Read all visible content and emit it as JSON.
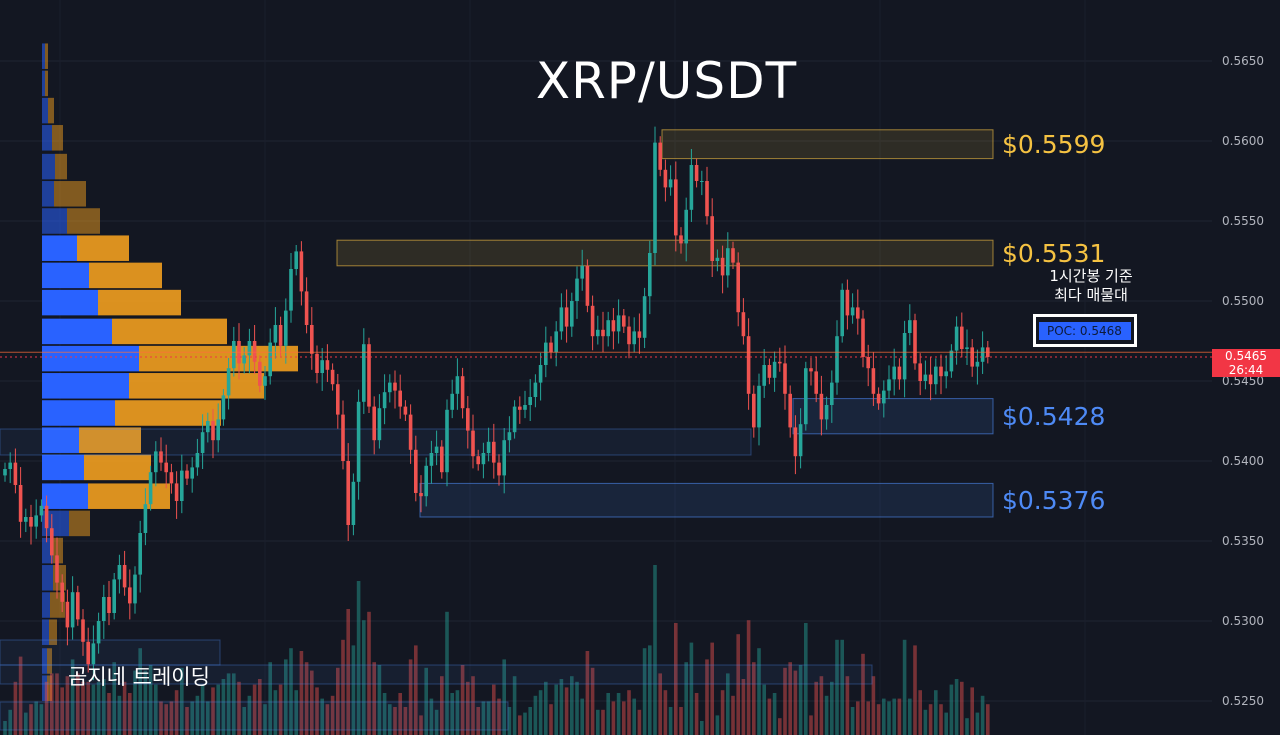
{
  "title": "XRP/USDT",
  "annotation": {
    "line1": "1시간봉 기준",
    "line2": "최다 매물대",
    "poc_label": "POC: 0.5468"
  },
  "brand": "곰지네 트레이딩",
  "current_price": {
    "value": "0.5465",
    "countdown": "26:44"
  },
  "colors": {
    "background": "#131722",
    "up": "#26a69a",
    "down": "#ef5350",
    "resistance": "#f5c242",
    "support": "#4e8af5",
    "poc": "#2962ff",
    "price_line": "#f23645"
  },
  "chart_data": {
    "type": "candlestick",
    "title": "XRP/USDT",
    "interval": "1시간봉",
    "ylim": [
      0.523,
      0.5665
    ],
    "y_ticks": [
      "0.5650",
      "0.5600",
      "0.5550",
      "0.5500",
      "0.5450",
      "0.5400",
      "0.5350",
      "0.5300",
      "0.5250"
    ],
    "levels": [
      {
        "label": "$0.5599",
        "price": 0.5599,
        "kind": "resistance",
        "low": 0.5589,
        "high": 0.5607
      },
      {
        "label": "$0.5531",
        "price": 0.5531,
        "kind": "resistance",
        "low": 0.5522,
        "high": 0.5538
      },
      {
        "label": "$0.5428",
        "price": 0.5428,
        "kind": "support",
        "low": 0.5417,
        "high": 0.5439
      },
      {
        "label": "$0.5376",
        "price": 0.5376,
        "kind": "support",
        "low": 0.5365,
        "high": 0.5386
      }
    ],
    "poc": 0.5468,
    "last_price": 0.5465,
    "volume_profile": {
      "bin_size": 0.00172,
      "bins": [
        {
          "price": 0.5653,
          "up": 3,
          "down": 3
        },
        {
          "price": 0.5636,
          "up": 3,
          "down": 3
        },
        {
          "price": 0.5619,
          "up": 6,
          "down": 6
        },
        {
          "price": 0.5602,
          "up": 10,
          "down": 11
        },
        {
          "price": 0.5584,
          "up": 13,
          "down": 12
        },
        {
          "price": 0.5567,
          "up": 12,
          "down": 32
        },
        {
          "price": 0.555,
          "up": 25,
          "down": 33
        },
        {
          "price": 0.5533,
          "up": 35,
          "down": 52
        },
        {
          "price": 0.5516,
          "up": 47,
          "down": 73
        },
        {
          "price": 0.5499,
          "up": 56,
          "down": 83
        },
        {
          "price": 0.5481,
          "up": 70,
          "down": 115
        },
        {
          "price": 0.5464,
          "up": 97,
          "down": 159
        },
        {
          "price": 0.5447,
          "up": 87,
          "down": 135
        },
        {
          "price": 0.543,
          "up": 73,
          "down": 106
        },
        {
          "price": 0.5413,
          "up": 37,
          "down": 62
        },
        {
          "price": 0.5396,
          "up": 42,
          "down": 67
        },
        {
          "price": 0.5378,
          "up": 46,
          "down": 82
        },
        {
          "price": 0.5361,
          "up": 27,
          "down": 21
        },
        {
          "price": 0.5344,
          "up": 11,
          "down": 10
        },
        {
          "price": 0.5327,
          "up": 11,
          "down": 13
        },
        {
          "price": 0.531,
          "up": 8,
          "down": 15
        },
        {
          "price": 0.5293,
          "up": 7,
          "down": 8
        },
        {
          "price": 0.5275,
          "up": 5,
          "down": 5
        },
        {
          "price": 0.5258,
          "up": 5,
          "down": 5
        }
      ]
    },
    "candles_close": [
      0.5395,
      0.5399,
      0.5385,
      0.5362,
      0.5365,
      0.5359,
      0.5366,
      0.5372,
      0.5358,
      0.5341,
      0.5324,
      0.5312,
      0.5296,
      0.5318,
      0.5301,
      0.5287,
      0.5273,
      0.5286,
      0.53,
      0.5315,
      0.5305,
      0.5326,
      0.5335,
      0.5321,
      0.5311,
      0.5329,
      0.5355,
      0.5373,
      0.5393,
      0.5406,
      0.5399,
      0.5393,
      0.5386,
      0.5375,
      0.5394,
      0.5389,
      0.5396,
      0.5405,
      0.5418,
      0.5425,
      0.5413,
      0.5426,
      0.5441,
      0.5458,
      0.5475,
      0.5461,
      0.5466,
      0.5475,
      0.5462,
      0.5447,
      0.5453,
      0.5474,
      0.5485,
      0.5472,
      0.5494,
      0.552,
      0.5531,
      0.5506,
      0.5485,
      0.5467,
      0.5455,
      0.5463,
      0.5457,
      0.5448,
      0.5429,
      0.54,
      0.536,
      0.5387,
      0.5437,
      0.5473,
      0.5434,
      0.5413,
      0.5433,
      0.5443,
      0.5449,
      0.5444,
      0.5434,
      0.5429,
      0.5407,
      0.538,
      0.5378,
      0.5397,
      0.5405,
      0.5409,
      0.5393,
      0.5432,
      0.5442,
      0.5453,
      0.5433,
      0.5419,
      0.5403,
      0.5398,
      0.5405,
      0.5412,
      0.5399,
      0.5391,
      0.5413,
      0.5418,
      0.5434,
      0.5432,
      0.5435,
      0.544,
      0.5449,
      0.546,
      0.5474,
      0.5468,
      0.5481,
      0.5496,
      0.5484,
      0.55,
      0.5514,
      0.5522,
      0.5497,
      0.5478,
      0.5482,
      0.5478,
      0.5488,
      0.5481,
      0.5491,
      0.5484,
      0.5473,
      0.5481,
      0.5477,
      0.5503,
      0.553,
      0.5599,
      0.5582,
      0.5571,
      0.5576,
      0.5541,
      0.5536,
      0.5557,
      0.5585,
      0.5575,
      0.5575,
      0.5553,
      0.5525,
      0.5527,
      0.5516,
      0.5533,
      0.5524,
      0.5493,
      0.5478,
      0.5442,
      0.5421,
      0.5447,
      0.546,
      0.5452,
      0.5462,
      0.5461,
      0.5442,
      0.5421,
      0.5403,
      0.5423,
      0.5458,
      0.5456,
      0.5442,
      0.5426,
      0.5435,
      0.5449,
      0.5478,
      0.5507,
      0.5491,
      0.5496,
      0.5489,
      0.5465,
      0.5458,
      0.5442,
      0.5436,
      0.5444,
      0.5451,
      0.5459,
      0.5451,
      0.548,
      0.5488,
      0.5461,
      0.545,
      0.5454,
      0.5448,
      0.5459,
      0.5453,
      0.5456,
      0.5469,
      0.5484,
      0.547,
      0.5471,
      0.5459,
      0.5462,
      0.5471,
      0.5465
    ]
  }
}
